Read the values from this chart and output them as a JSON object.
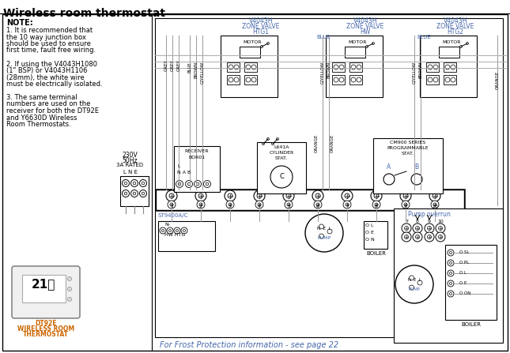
{
  "title": "Wireless room thermostat",
  "bg": "#ffffff",
  "text_color_blue": "#4466aa",
  "text_color_orange": "#cc6600",
  "text_color_black": "#000000",
  "note_title": "NOTE:",
  "note_lines": [
    "1. It is recommended that",
    "the 10 way junction box",
    "should be used to ensure",
    "first time, fault free wiring.",
    "2. If using the V4043H1080",
    "(1\" BSP) or V4043H1106",
    "(28mm), the white wire",
    "must be electrically isolated.",
    "3. The same terminal",
    "numbers are used on the",
    "receiver for both the DT92E",
    "and Y6630D Wireless",
    "Room Thermostats."
  ],
  "frost_text": "For Frost Protection information - see page 22",
  "pump_overrun_label": "Pump overrun",
  "dt92e_label": "DT92E\nWIRELESS ROOM\nTHERMOSTAT",
  "st9400_label": "ST9400A/C",
  "hwhtg_label": "HW HTG",
  "boiler_label": "BOILER",
  "power_label": "230V\n50Hz\n3A RATED",
  "lne_label": "L N E",
  "wire_colors_htg1": [
    "GREY",
    "GREY",
    "GREY",
    "BLUE",
    "BROWN",
    "G/YELLOW"
  ],
  "wire_colors_hw": [
    "BLUE",
    "G/YELLOW",
    "BROWN"
  ],
  "wire_colors_htg2": [
    "BLUE",
    "G/YELLOW",
    "BROWN"
  ],
  "orange_label": "ORANGE",
  "zone1_label": [
    "V4043H",
    "ZONE VALVE",
    "HTG1"
  ],
  "zone2_label": [
    "V4043H",
    "ZONE VALVE",
    "HW"
  ],
  "zone3_label": [
    "V4043H",
    "ZONE VALVE",
    "HTG2"
  ],
  "receiver_label": [
    "RECEIVER",
    "BOR01"
  ],
  "l641a_label": [
    "L641A",
    "CYLINDER",
    "STAT."
  ],
  "cm900_label": [
    "CM900 SERIES",
    "PROGRAMMABLE",
    "STAT."
  ]
}
